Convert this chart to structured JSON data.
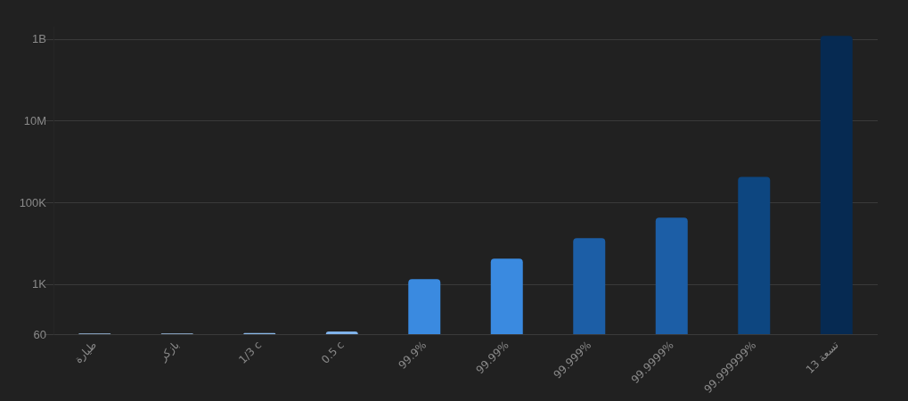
{
  "chart_data": {
    "type": "bar",
    "categories": [
      "طيارة",
      "بازكر",
      "1/3 c",
      "0.5 c",
      "99.9%",
      "99.99%",
      "99.999%",
      "99.9999%",
      "99.999999%",
      "تسعة 13"
    ],
    "values": [
      62,
      62,
      64,
      70,
      1340,
      4240,
      13400,
      42400,
      424000,
      1200000000
    ],
    "colors": [
      "#a4c8ee",
      "#a4c8ee",
      "#8dbbec",
      "#7fb2ea",
      "#3a8ae0",
      "#3a8ae0",
      "#1c5ea6",
      "#1c5ea6",
      "#0d4680",
      "#062a52"
    ],
    "log": "y",
    "ylim": [
      60,
      2000000000
    ],
    "yticks": [
      60,
      {
        "value": 1000,
        "label": "1K"
      },
      {
        "value": 100000,
        "label": "100K"
      },
      {
        "value": 10000000,
        "label": "10M"
      },
      {
        "value": 1000000000,
        "label": "1B"
      }
    ],
    "grid": "y"
  }
}
